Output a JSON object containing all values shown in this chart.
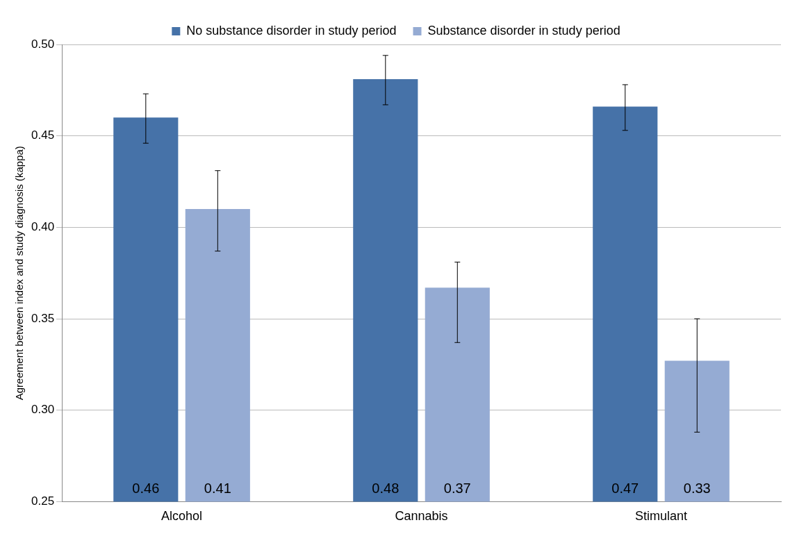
{
  "chart_data": {
    "type": "bar",
    "ylabel": "Agreement between index and study diagnosis (kappa)",
    "categories": [
      "Alcohol",
      "Cannabis",
      "Stimulant"
    ],
    "series": [
      {
        "name": "No substance disorder in study period",
        "color": "#4672a8",
        "values": [
          0.46,
          0.481,
          0.466
        ],
        "value_labels": [
          "0.46",
          "0.48",
          "0.47"
        ],
        "errors": [
          [
            0.446,
            0.473
          ],
          [
            0.467,
            0.494
          ],
          [
            0.453,
            0.478
          ]
        ]
      },
      {
        "name": "Substance disorder in study period",
        "color": "#95abd3",
        "values": [
          0.41,
          0.367,
          0.327
        ],
        "value_labels": [
          "0.41",
          "0.37",
          "0.33"
        ],
        "errors": [
          [
            0.387,
            0.431
          ],
          [
            0.337,
            0.381
          ],
          [
            0.288,
            0.35
          ]
        ]
      }
    ],
    "ylim": [
      0.25,
      0.5
    ],
    "yticks": [
      {
        "value": 0.25,
        "label": "0.25"
      },
      {
        "value": 0.3,
        "label": "0.30"
      },
      {
        "value": 0.35,
        "label": "0.35"
      },
      {
        "value": 0.4,
        "label": "0.40"
      },
      {
        "value": 0.45,
        "label": "0.45"
      },
      {
        "value": 0.5,
        "label": "0.50"
      }
    ],
    "grid": "y",
    "legend": "top"
  }
}
